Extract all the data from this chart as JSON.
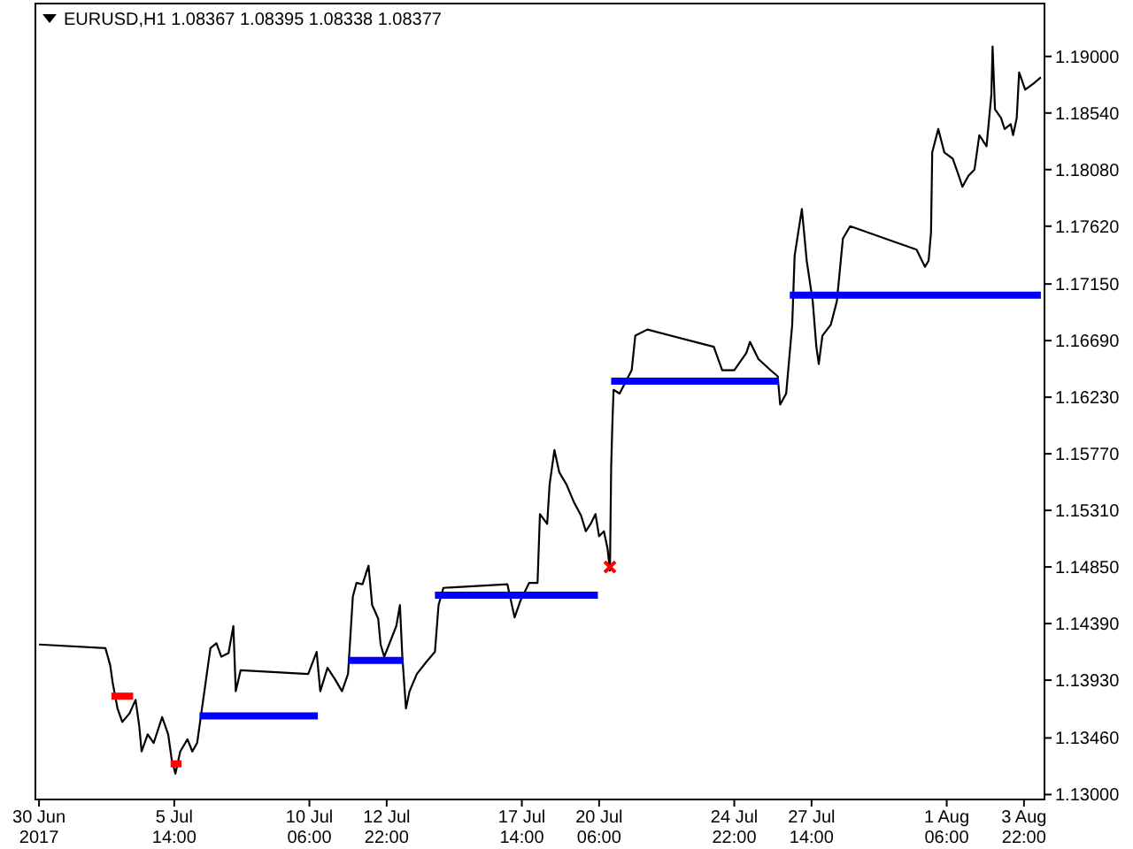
{
  "chart_data": {
    "type": "line",
    "title": "EURUSD,H1  1.08367 1.08395 1.08338 1.08377",
    "xlim": [
      "2017-06-30T19:00",
      "2017-08-04T15:00"
    ],
    "xticks": [
      {
        "value": "2017-06-30T22:00",
        "label": "30 Jun 2017"
      },
      {
        "value": "2017-07-05T14:00",
        "label": "5 Jul 14:00"
      },
      {
        "value": "2017-07-10T06:00",
        "label": "10 Jul 06:00"
      },
      {
        "value": "2017-07-12T22:00",
        "label": "12 Jul 22:00"
      },
      {
        "value": "2017-07-17T14:00",
        "label": "17 Jul 14:00"
      },
      {
        "value": "2017-07-20T06:00",
        "label": "20 Jul 06:00"
      },
      {
        "value": "2017-07-24T22:00",
        "label": "24 Jul 22:00"
      },
      {
        "value": "2017-07-27T14:00",
        "label": "27 Jul 14:00"
      },
      {
        "value": "2017-08-01T06:00",
        "label": "1 Aug 06:00"
      },
      {
        "value": "2017-08-03T22:00",
        "label": "3 Aug 22:00"
      }
    ],
    "ylim": [
      1.1296,
      1.1943
    ],
    "yticks": [
      {
        "value": 1.13,
        "label": "1.13000"
      },
      {
        "value": 1.1346,
        "label": "1.13460"
      },
      {
        "value": 1.1393,
        "label": "1.13930"
      },
      {
        "value": 1.1439,
        "label": "1.14390"
      },
      {
        "value": 1.1485,
        "label": "1.14850"
      },
      {
        "value": 1.1531,
        "label": "1.15310"
      },
      {
        "value": 1.1577,
        "label": "1.15770"
      },
      {
        "value": 1.1623,
        "label": "1.16230"
      },
      {
        "value": 1.1669,
        "label": "1.16690"
      },
      {
        "value": 1.1715,
        "label": "1.17150"
      },
      {
        "value": 1.1762,
        "label": "1.17620"
      },
      {
        "value": 1.1808,
        "label": "1.18080"
      },
      {
        "value": 1.1854,
        "label": "1.18540"
      },
      {
        "value": 1.19,
        "label": "1.19000"
      }
    ],
    "grid": false,
    "series": [
      {
        "color": "#000000",
        "x": [
          "2017-06-30T22:00",
          "2017-07-03T05:00",
          "2017-07-03T09:00",
          "2017-07-03T11:00",
          "2017-07-03T15:00",
          "2017-07-03T19:00",
          "2017-07-04T01:00",
          "2017-07-04T06:00",
          "2017-07-04T09:00",
          "2017-07-04T11:00",
          "2017-07-04T16:00",
          "2017-07-04T21:00",
          "2017-07-05T04:00",
          "2017-07-05T09:00",
          "2017-07-05T12:00",
          "2017-07-05T15:00",
          "2017-07-05T19:00",
          "2017-07-06T01:00",
          "2017-07-06T05:00",
          "2017-07-06T09:00",
          "2017-07-06T13:00",
          "2017-07-06T16:00",
          "2017-07-06T20:00",
          "2017-07-07T01:00",
          "2017-07-07T05:00",
          "2017-07-07T11:00",
          "2017-07-07T15:00",
          "2017-07-07T17:00",
          "2017-07-07T21:00",
          "2017-07-10T05:00",
          "2017-07-10T12:00",
          "2017-07-10T15:00",
          "2017-07-10T21:00",
          "2017-07-11T03:00",
          "2017-07-11T09:00",
          "2017-07-11T14:00",
          "2017-07-11T18:00",
          "2017-07-11T21:00",
          "2017-07-12T02:00",
          "2017-07-12T07:00",
          "2017-07-12T10:00",
          "2017-07-12T15:00",
          "2017-07-12T17:00",
          "2017-07-12T20:00",
          "2017-07-13T00:00",
          "2017-07-13T06:00",
          "2017-07-13T09:00",
          "2017-07-13T11:00",
          "2017-07-13T14:00",
          "2017-07-13T17:00",
          "2017-07-13T23:00",
          "2017-07-14T07:00",
          "2017-07-14T14:00",
          "2017-07-14T17:00",
          "2017-07-14T21:00",
          "2017-07-17T02:00",
          "2017-07-17T08:00",
          "2017-07-17T13:00",
          "2017-07-17T20:00",
          "2017-07-18T03:00",
          "2017-07-18T05:00",
          "2017-07-18T11:00",
          "2017-07-18T13:00",
          "2017-07-18T17:00",
          "2017-07-18T21:00",
          "2017-07-19T03:00",
          "2017-07-19T09:00",
          "2017-07-19T15:00",
          "2017-07-19T19:00",
          "2017-07-19T23:00",
          "2017-07-20T03:00",
          "2017-07-20T06:00",
          "2017-07-20T10:00",
          "2017-07-20T13:00",
          "2017-07-20T15:00",
          "2017-07-20T16:00",
          "2017-07-20T17:00",
          "2017-07-20T18:00",
          "2017-07-20T23:00",
          "2017-07-21T09:00",
          "2017-07-21T12:00",
          "2017-07-21T22:00",
          "2017-07-24T05:00",
          "2017-07-24T12:00",
          "2017-07-24T22:00",
          "2017-07-25T08:00",
          "2017-07-25T11:00",
          "2017-07-25T18:00",
          "2017-07-26T04:00",
          "2017-07-26T10:00",
          "2017-07-26T12:00",
          "2017-07-26T17:00",
          "2017-07-26T22:00",
          "2017-07-27T00:00",
          "2017-07-27T06:00",
          "2017-07-27T10:00",
          "2017-07-27T15:00",
          "2017-07-27T18:00",
          "2017-07-27T20:00",
          "2017-07-27T23:00",
          "2017-07-28T06:00",
          "2017-07-28T11:00",
          "2017-07-28T16:00",
          "2017-07-28T22:00",
          "2017-07-31T05:00",
          "2017-07-31T12:00",
          "2017-07-31T15:00",
          "2017-07-31T17:00",
          "2017-07-31T18:00",
          "2017-07-31T23:00",
          "2017-08-01T04:00",
          "2017-08-01T11:00",
          "2017-08-01T16:00",
          "2017-08-01T19:00",
          "2017-08-02T00:00",
          "2017-08-02T05:00",
          "2017-08-02T09:00",
          "2017-08-02T15:00",
          "2017-08-02T19:00",
          "2017-08-02T20:00",
          "2017-08-02T22:00",
          "2017-08-03T03:00",
          "2017-08-03T06:00",
          "2017-08-03T11:00",
          "2017-08-03T13:00",
          "2017-08-03T16:00",
          "2017-08-03T18:00",
          "2017-08-03T23:00",
          "2017-08-04T06:00",
          "2017-08-04T12:00"
        ],
        "values": [
          1.1422,
          1.1419,
          1.1405,
          1.1391,
          1.137,
          1.1359,
          1.1366,
          1.1377,
          1.1356,
          1.1335,
          1.1349,
          1.1342,
          1.1363,
          1.1349,
          1.1328,
          1.1317,
          1.1335,
          1.1345,
          1.1335,
          1.1342,
          1.137,
          1.1391,
          1.1419,
          1.1423,
          1.1412,
          1.1415,
          1.1437,
          1.1384,
          1.1401,
          1.1398,
          1.1416,
          1.1384,
          1.1403,
          1.1394,
          1.1384,
          1.1398,
          1.1461,
          1.1472,
          1.1471,
          1.1486,
          1.1454,
          1.1443,
          1.1422,
          1.1412,
          1.1422,
          1.1437,
          1.1454,
          1.1412,
          1.137,
          1.1384,
          1.1398,
          1.1408,
          1.1416,
          1.1454,
          1.1468,
          1.1471,
          1.1444,
          1.1458,
          1.1472,
          1.1472,
          1.1528,
          1.152,
          1.1552,
          1.158,
          1.1562,
          1.1552,
          1.1538,
          1.1527,
          1.1514,
          1.152,
          1.1528,
          1.151,
          1.1514,
          1.15,
          1.1482,
          1.1566,
          1.1601,
          1.1629,
          1.1626,
          1.1645,
          1.1673,
          1.1678,
          1.1664,
          1.1645,
          1.1645,
          1.1659,
          1.1668,
          1.1654,
          1.1645,
          1.164,
          1.1617,
          1.1626,
          1.1682,
          1.1738,
          1.1776,
          1.1734,
          1.1701,
          1.1664,
          1.165,
          1.1673,
          1.1682,
          1.1701,
          1.1752,
          1.1762,
          1.1743,
          1.1729,
          1.1734,
          1.1757,
          1.1822,
          1.1841,
          1.1822,
          1.1817,
          1.1803,
          1.1794,
          1.1803,
          1.1808,
          1.1836,
          1.1827,
          1.1869,
          1.1908,
          1.1857,
          1.185,
          1.1841,
          1.1845,
          1.1836,
          1.185,
          1.1887,
          1.1873,
          1.1878,
          1.1883
        ]
      },
      {
        "color": "#ff0000",
        "x": [
          "2017-07-03T10:00",
          "2017-07-04T04:00"
        ],
        "values": [
          1.138,
          1.138
        ]
      },
      {
        "color": "#ff0000",
        "x": [
          "2017-07-05T11:00",
          "2017-07-05T20:00"
        ],
        "values": [
          1.1325,
          1.1325
        ]
      },
      {
        "color": "#0000ff",
        "x": [
          "2017-07-06T11:00",
          "2017-07-10T13:00"
        ],
        "values": [
          1.1364,
          1.1364
        ]
      },
      {
        "color": "#0000ff",
        "x": [
          "2017-07-11T14:00",
          "2017-07-13T12:00"
        ],
        "values": [
          1.1409,
          1.1409
        ]
      },
      {
        "color": "#0000ff",
        "x": [
          "2017-07-14T14:00",
          "2017-07-20T05:00"
        ],
        "values": [
          1.1462,
          1.1462
        ]
      },
      {
        "color": "#0000ff",
        "x": [
          "2017-07-20T16:00",
          "2017-07-26T11:00"
        ],
        "values": [
          1.1636,
          1.1636
        ]
      },
      {
        "color": "#0000ff",
        "x": [
          "2017-07-26T20:00",
          "2017-08-04T12:00"
        ],
        "values": [
          1.1706,
          1.1706
        ]
      },
      {
        "type": "scatter",
        "marker": "cross",
        "color": "#ff0000",
        "x": [
          "2017-07-20T15:00"
        ],
        "values": [
          1.1485
        ]
      }
    ]
  }
}
